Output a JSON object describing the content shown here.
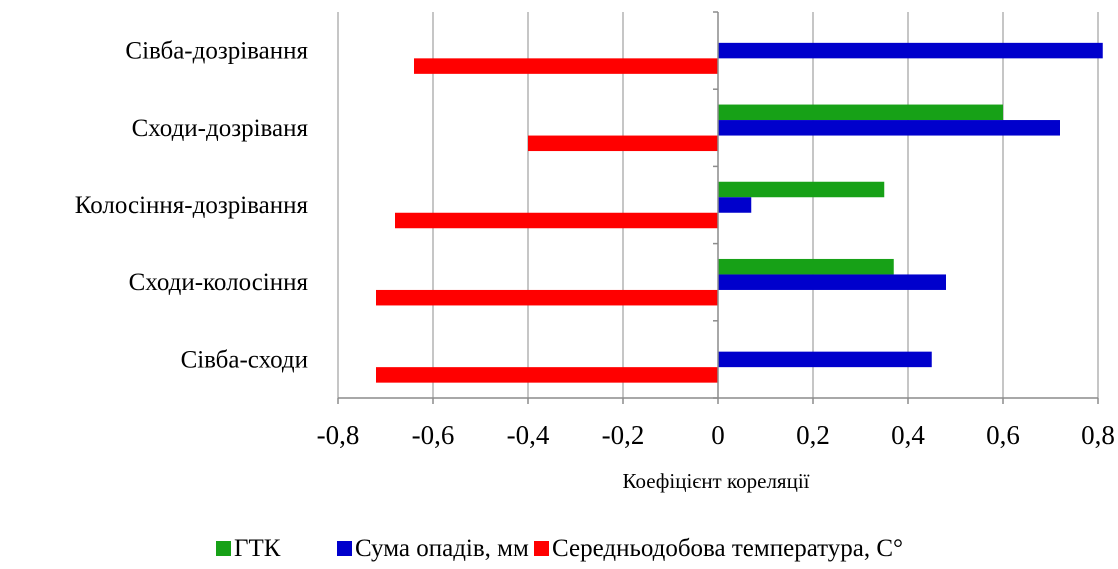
{
  "chart_data": {
    "type": "bar",
    "orientation": "horizontal",
    "title": "",
    "xlabel": "Коефіцієнт кореляції",
    "ylabel": "",
    "xlim": [
      -0.8,
      0.8
    ],
    "x_ticks": [
      -0.8,
      -0.6,
      -0.4,
      -0.2,
      0,
      0.2,
      0.4,
      0.6,
      0.8
    ],
    "x_tick_labels": [
      "-0,8",
      "-0,6",
      "-0,4",
      "-0,2",
      "0",
      "0,2",
      "0,4",
      "0,6",
      "0,8"
    ],
    "grid": "vertical",
    "legend_position": "bottom",
    "categories": [
      "Сівба-сходи",
      "Сходи-колосіння",
      "Колосіння-дозрівання",
      "Сходи-дозріваня",
      "Сівба-дозрівання"
    ],
    "series": [
      {
        "name": "ГТК",
        "color": "#17a117",
        "values": [
          0,
          0.37,
          0.35,
          0.6,
          0
        ]
      },
      {
        "name": "Сума опадів, мм",
        "color": "#0000cc",
        "values": [
          0.45,
          0.48,
          0.07,
          0.72,
          0.81
        ]
      },
      {
        "name": "Середньодобова температура, С°",
        "color": "#ff0000",
        "values": [
          -0.72,
          -0.72,
          -0.68,
          -0.4,
          -0.64
        ]
      }
    ]
  }
}
